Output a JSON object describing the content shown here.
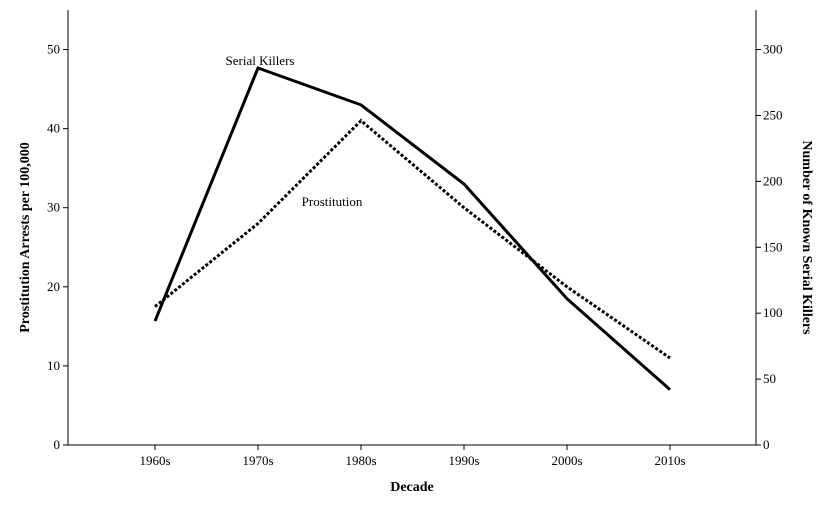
{
  "chart_data": {
    "type": "line",
    "title": "",
    "xlabel": "Decade",
    "ylabel_left": "Prostitution Arrests per 100,000",
    "ylabel_right": "Number of Known Serial Killers",
    "categories": [
      "1960s",
      "1970s",
      "1980s",
      "1990s",
      "2000s",
      "2010s"
    ],
    "y_left": {
      "min": 0,
      "max": 55,
      "ticks": [
        0,
        10,
        20,
        30,
        40,
        50
      ]
    },
    "y_right": {
      "min": 0,
      "max": 330,
      "ticks": [
        0,
        50,
        100,
        150,
        200,
        250,
        300
      ]
    },
    "grid": false,
    "legend": "none",
    "series": [
      {
        "name": "Serial Killers",
        "axis": "right",
        "style": "solid",
        "color": "#000000",
        "values": [
          94,
          286,
          258,
          198,
          111,
          42
        ]
      },
      {
        "name": "Prostitution",
        "axis": "left",
        "style": "dotted",
        "color": "#000000",
        "values": [
          17.5,
          28,
          41,
          30,
          20,
          11
        ]
      }
    ]
  }
}
